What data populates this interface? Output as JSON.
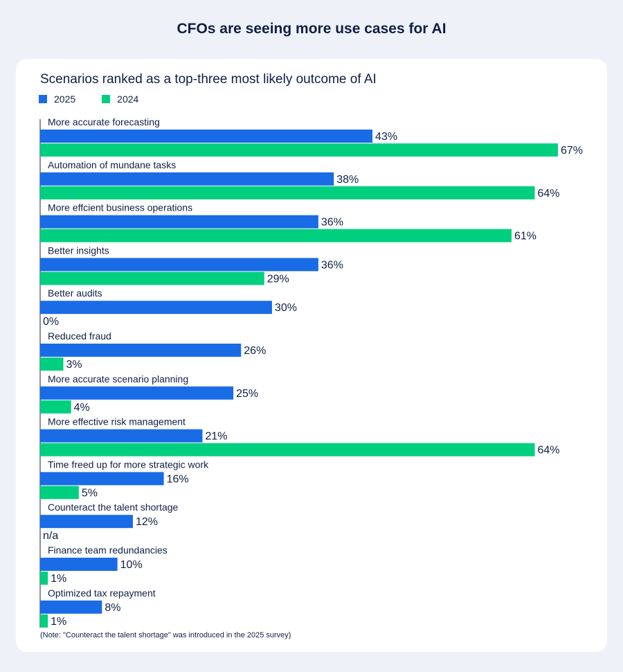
{
  "header": {
    "title": "CFOs are seeing more use cases for AI"
  },
  "colors": {
    "series_2025": "#1a6be6",
    "series_2024": "#00cf7f",
    "text": "#0f1f45",
    "background": "#eef2f8",
    "card": "#ffffff"
  },
  "note": "(Note: \"Counteract the talent shortage\" was introduced in the 2025 survey)",
  "chart_data": {
    "type": "bar",
    "orientation": "horizontal",
    "title": "Scenarios ranked as a top-three most likely outcome of AI",
    "legend_placement": "top-left",
    "grid": false,
    "xlim": [
      0,
      67
    ],
    "categories": [
      "More accurate forecasting",
      "Automation of mundane tasks",
      "More effcient business operations",
      "Better insights",
      "Better audits",
      "Reduced fraud",
      "More accurate scenario planning",
      "More effective risk management",
      "Time freed up for more strategic work",
      "Counteract the talent shortage",
      "Finance team redundancies",
      "Optimized tax repayment"
    ],
    "series": [
      {
        "name": "2025",
        "values": [
          43,
          38,
          36,
          36,
          30,
          26,
          25,
          21,
          16,
          12,
          10,
          8
        ],
        "labels": [
          "43%",
          "38%",
          "36%",
          "36%",
          "30%",
          "26%",
          "25%",
          "21%",
          "16%",
          "12%",
          "10%",
          "8%"
        ]
      },
      {
        "name": "2024",
        "values": [
          67,
          64,
          61,
          29,
          0,
          3,
          4,
          64,
          5,
          null,
          1,
          1
        ],
        "labels": [
          "67%",
          "64%",
          "61%",
          "29%",
          "0%",
          "3%",
          "4%",
          "64%",
          "5%",
          "n/a",
          "1%",
          "1%"
        ]
      }
    ]
  }
}
